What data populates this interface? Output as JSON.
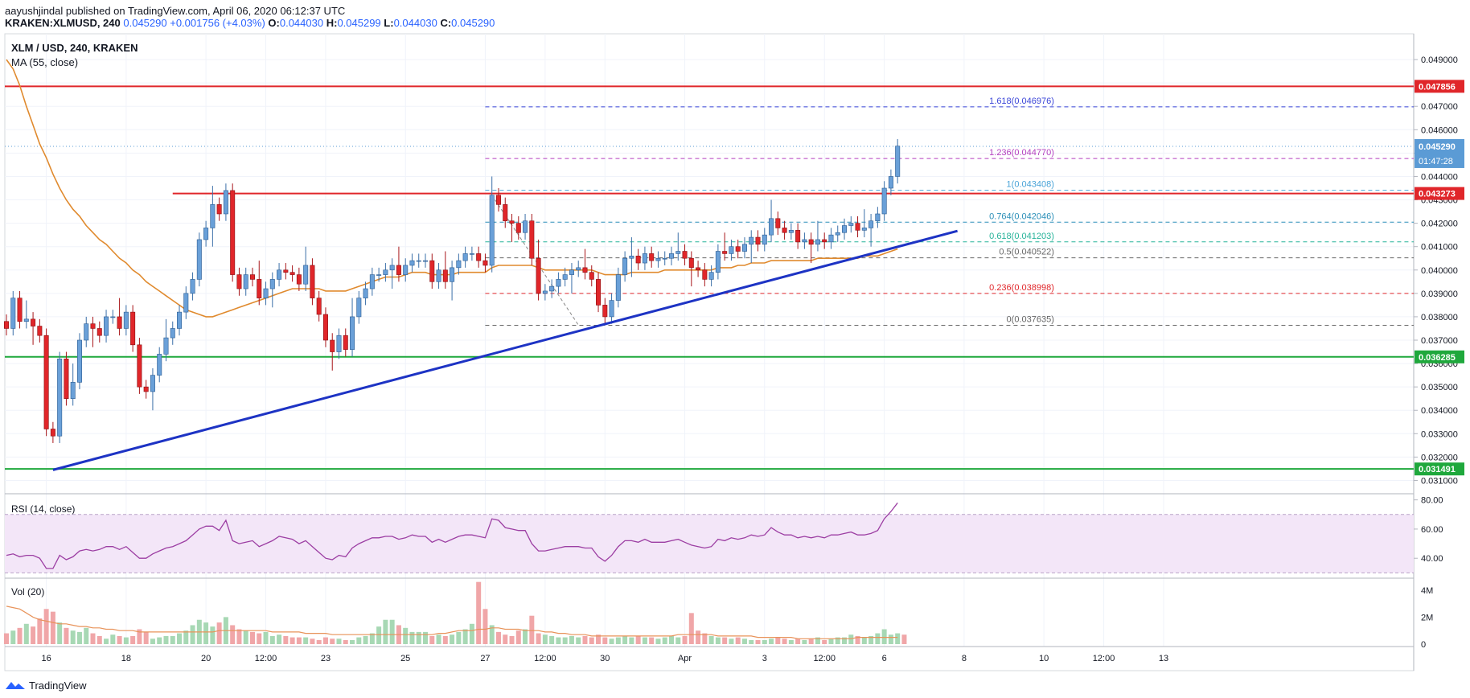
{
  "header": {
    "publisher": "aayushjindal",
    "published_text": "published on TradingView.com, April 06, 2020 06:12:37 UTC",
    "symbol_line": "KRAKEN:XLMUSD, 240",
    "last_price": "0.045290",
    "change": "+0.001756 (+4.03%)",
    "open_label": "O:",
    "open": "0.044030",
    "high_label": "H:",
    "high": "0.045299",
    "low_label": "L:",
    "low": "0.044030",
    "close_label": "C:",
    "close": "0.045290"
  },
  "footer": {
    "brand": "TradingView"
  },
  "colors": {
    "up": "#6aa0d8",
    "down": "#e0262a",
    "ma": "#e08a2e",
    "trend": "#1d33c4",
    "resistance": "#e0262a",
    "support": "#1fa83c",
    "rsi": "#9c3ea3",
    "volume_ma": "#e8935a"
  },
  "chart_data": [
    {
      "type": "candlestick",
      "title": "XLM / USD, 240, KRAKEN",
      "indicator_label": "MA (55, close)",
      "ylim": [
        0.0305,
        0.05
      ],
      "y_ticks": [
        "0.049000",
        "0.048000",
        "0.047000",
        "0.046000",
        "0.045000",
        "0.044000",
        "0.043000",
        "0.042000",
        "0.041000",
        "0.040000",
        "0.039000",
        "0.038000",
        "0.037000",
        "0.036000",
        "0.035000",
        "0.034000",
        "0.033000",
        "0.032000",
        "0.031000"
      ],
      "x_ticks": [
        {
          "label": "16",
          "i": 6
        },
        {
          "label": "18",
          "i": 18
        },
        {
          "label": "20",
          "i": 30
        },
        {
          "label": "12:00",
          "i": 39
        },
        {
          "label": "23",
          "i": 48
        },
        {
          "label": "25",
          "i": 60
        },
        {
          "label": "27",
          "i": 72
        },
        {
          "label": "12:00",
          "i": 81
        },
        {
          "label": "30",
          "i": 90
        },
        {
          "label": "Apr",
          "i": 102
        },
        {
          "label": "3",
          "i": 114
        },
        {
          "label": "12:00",
          "i": 123
        },
        {
          "label": "6",
          "i": 132
        },
        {
          "label": "8",
          "i": 144
        },
        {
          "label": "10",
          "i": 156
        },
        {
          "label": "12:00",
          "i": 165
        },
        {
          "label": "13",
          "i": 174
        }
      ],
      "candles_close": [
        0.0375,
        0.0388,
        0.0378,
        0.0379,
        0.0376,
        0.0372,
        0.0332,
        0.0329,
        0.0362,
        0.0345,
        0.0352,
        0.037,
        0.0377,
        0.0375,
        0.0372,
        0.038,
        0.038,
        0.0375,
        0.0382,
        0.0368,
        0.035,
        0.0348,
        0.0355,
        0.0364,
        0.0371,
        0.0375,
        0.0382,
        0.039,
        0.0396,
        0.0413,
        0.0418,
        0.0428,
        0.0424,
        0.0434,
        0.0398,
        0.0392,
        0.0398,
        0.0396,
        0.0388,
        0.0392,
        0.0396,
        0.04,
        0.0399,
        0.0398,
        0.0394,
        0.0402,
        0.0388,
        0.0381,
        0.037,
        0.0365,
        0.0372,
        0.0366,
        0.038,
        0.0388,
        0.0392,
        0.0398,
        0.0398,
        0.04,
        0.0402,
        0.0398,
        0.0402,
        0.0404,
        0.0404,
        0.0404,
        0.0395,
        0.04,
        0.0395,
        0.0401,
        0.0404,
        0.0407,
        0.0407,
        0.0404,
        0.0402,
        0.0432,
        0.0428,
        0.0421,
        0.042,
        0.0416,
        0.0421,
        0.0405,
        0.039,
        0.0391,
        0.0393,
        0.0396,
        0.0398,
        0.04,
        0.0401,
        0.0399,
        0.0396,
        0.0385,
        0.038,
        0.0387,
        0.0398,
        0.0405,
        0.0406,
        0.0403,
        0.0407,
        0.0404,
        0.0405,
        0.0405,
        0.0407,
        0.0408,
        0.0405,
        0.0401,
        0.04,
        0.0396,
        0.0399,
        0.0408,
        0.0407,
        0.041,
        0.0408,
        0.0411,
        0.0414,
        0.0411,
        0.0415,
        0.0422,
        0.0418,
        0.0416,
        0.0417,
        0.0412,
        0.0413,
        0.0411,
        0.0413,
        0.0412,
        0.0415,
        0.0416,
        0.0419,
        0.042,
        0.0417,
        0.0418,
        0.0421,
        0.0424,
        0.0435,
        0.044,
        0.0453
      ],
      "candles_start_open": 0.0378,
      "ma_55": [
        0.049,
        0.0486,
        0.0479,
        0.047,
        0.0462,
        0.0454,
        0.0448,
        0.0441,
        0.0435,
        0.043,
        0.0426,
        0.0423,
        0.0419,
        0.0416,
        0.0413,
        0.0411,
        0.0408,
        0.0405,
        0.0403,
        0.04,
        0.0398,
        0.0395,
        0.0393,
        0.0391,
        0.0389,
        0.0387,
        0.0385,
        0.0383,
        0.0382,
        0.0381,
        0.038,
        0.038,
        0.0381,
        0.0382,
        0.0383,
        0.0384,
        0.0385,
        0.0386,
        0.0387,
        0.0388,
        0.0389,
        0.039,
        0.0391,
        0.0392,
        0.0392,
        0.0392,
        0.0392,
        0.0392,
        0.0391,
        0.0391,
        0.0391,
        0.0391,
        0.0392,
        0.0393,
        0.0394,
        0.0395,
        0.0396,
        0.0397,
        0.0397,
        0.0397,
        0.0398,
        0.0399,
        0.0399,
        0.0399,
        0.0398,
        0.0398,
        0.0398,
        0.0398,
        0.0399,
        0.0399,
        0.0399,
        0.0399,
        0.0399,
        0.0401,
        0.0402,
        0.0402,
        0.0402,
        0.0402,
        0.0402,
        0.0402,
        0.0401,
        0.04,
        0.04,
        0.04,
        0.04,
        0.04,
        0.04,
        0.04,
        0.04,
        0.0399,
        0.0398,
        0.0398,
        0.0398,
        0.0398,
        0.0399,
        0.0399,
        0.0399,
        0.0399,
        0.0399,
        0.04,
        0.04,
        0.04,
        0.04,
        0.04,
        0.04,
        0.04,
        0.04,
        0.0401,
        0.0401,
        0.0401,
        0.0402,
        0.0402,
        0.0403,
        0.0403,
        0.0403,
        0.0404,
        0.0404,
        0.0404,
        0.0404,
        0.0404,
        0.0404,
        0.0404,
        0.0405,
        0.0405,
        0.0405,
        0.0405,
        0.0405,
        0.0405,
        0.0405,
        0.0406,
        0.0406,
        0.0406,
        0.0407,
        0.0408,
        0.0409
      ],
      "horizontal_levels": [
        {
          "value": 0.047856,
          "label": "0.047856",
          "color": "#e0262a"
        },
        {
          "value": 0.043273,
          "label": "0.043273",
          "color": "#e0262a"
        },
        {
          "value": 0.036285,
          "label": "0.036285",
          "color": "#1fa83c"
        },
        {
          "value": 0.031491,
          "label": "0.031491",
          "color": "#1fa83c"
        }
      ],
      "last_price_label": "0.045290",
      "countdown_label": "01:47:28",
      "fibonacci": {
        "from_i": 72,
        "to_i": 144,
        "levels": [
          {
            "text": "1.618(0.046976)",
            "value": 0.046976,
            "color": "#3b46d8"
          },
          {
            "text": "1.236(0.044770)",
            "value": 0.04477,
            "color": "#b33fbf"
          },
          {
            "text": "1(0.043408)",
            "value": 0.043408,
            "color": "#4aa4d8"
          },
          {
            "text": "0.764(0.042046)",
            "value": 0.042046,
            "color": "#2b8fb8"
          },
          {
            "text": "0.618(0.041203)",
            "value": 0.041203,
            "color": "#27b39a"
          },
          {
            "text": "0.5(0.040522)",
            "value": 0.040522,
            "color": "#666666"
          },
          {
            "text": "0.236(0.038998)",
            "value": 0.038998,
            "color": "#e0262a"
          },
          {
            "text": "0(0.037635)",
            "value": 0.037635,
            "color": "#666666"
          }
        ]
      },
      "trendline": {
        "i1": 7,
        "v1": 0.03145,
        "i2": 143,
        "v2": 0.04167
      }
    },
    {
      "type": "line",
      "title": "RSI (14, close)",
      "ylim": [
        28,
        82
      ],
      "y_ticks": [
        "80.00",
        "60.00",
        "40.00"
      ],
      "band": [
        30,
        70
      ],
      "values": [
        42,
        43,
        41,
        42,
        42,
        40,
        33,
        33,
        42,
        39,
        41,
        45,
        46,
        45,
        46,
        48,
        48,
        46,
        48,
        44,
        40,
        40,
        43,
        45,
        47,
        48,
        50,
        52,
        56,
        60,
        62,
        62,
        59,
        66,
        52,
        50,
        51,
        52,
        48,
        50,
        52,
        55,
        54,
        53,
        50,
        52,
        48,
        44,
        40,
        39,
        42,
        41,
        47,
        50,
        52,
        54,
        54,
        55,
        55,
        53,
        54,
        56,
        55,
        55,
        51,
        53,
        51,
        53,
        55,
        56,
        56,
        55,
        54,
        67,
        66,
        61,
        60,
        59,
        59,
        50,
        45,
        45,
        46,
        47,
        48,
        48,
        48,
        47,
        47,
        41,
        38,
        42,
        48,
        52,
        52,
        51,
        53,
        51,
        51,
        51,
        52,
        53,
        51,
        49,
        48,
        47,
        48,
        53,
        52,
        54,
        53,
        54,
        56,
        55,
        56,
        61,
        58,
        56,
        56,
        54,
        55,
        54,
        55,
        54,
        56,
        56,
        57,
        58,
        56,
        56,
        57,
        59,
        67,
        72,
        78
      ]
    },
    {
      "type": "bar",
      "title": "Vol (20)",
      "ylim": [
        0,
        4.7
      ],
      "y_ticks": [
        "4M",
        "2M",
        "0"
      ],
      "values": [
        0.8,
        1.0,
        1.2,
        1.5,
        1.3,
        1.9,
        2.6,
        2.4,
        1.6,
        1.2,
        1.0,
        0.9,
        1.2,
        0.8,
        0.6,
        0.4,
        0.7,
        0.6,
        0.5,
        0.6,
        1.1,
        0.9,
        0.4,
        0.5,
        0.6,
        0.6,
        0.8,
        1.0,
        1.4,
        1.8,
        1.6,
        1.3,
        1.6,
        2.0,
        1.4,
        1.1,
        1.0,
        0.9,
        0.8,
        0.9,
        0.6,
        0.7,
        0.6,
        0.5,
        0.5,
        0.5,
        0.4,
        0.3,
        0.5,
        0.4,
        0.4,
        0.3,
        0.3,
        0.5,
        0.6,
        0.8,
        1.3,
        1.8,
        1.8,
        1.4,
        1.2,
        0.9,
        0.9,
        0.9,
        0.6,
        0.7,
        0.6,
        0.7,
        0.9,
        1.1,
        1.5,
        4.6,
        2.6,
        1.4,
        0.9,
        0.7,
        0.6,
        1.0,
        1.1,
        2.1,
        0.8,
        0.7,
        0.6,
        0.5,
        0.5,
        0.6,
        0.5,
        0.6,
        0.5,
        0.7,
        0.5,
        0.4,
        0.5,
        0.6,
        0.5,
        0.6,
        0.5,
        0.5,
        0.4,
        0.5,
        0.6,
        0.5,
        0.6,
        2.3,
        1.0,
        0.8,
        0.6,
        0.5,
        0.5,
        0.4,
        0.5,
        0.4,
        0.3,
        0.3,
        0.3,
        0.4,
        0.5,
        0.4,
        0.3,
        0.4,
        0.3,
        0.4,
        0.5,
        0.3,
        0.4,
        0.5,
        0.5,
        0.7,
        0.6,
        0.5,
        0.6,
        0.8,
        1.1,
        0.7,
        0.8,
        0.7
      ],
      "ma_20": [
        2.8,
        2.7,
        2.6,
        2.3,
        2.0,
        1.8,
        1.7,
        1.6,
        1.5,
        1.5,
        1.4,
        1.3,
        1.3,
        1.2,
        1.2,
        1.1,
        1.1,
        1.0,
        1.0,
        1.0,
        0.9,
        0.9,
        0.9,
        0.9,
        0.9,
        0.9,
        0.9,
        0.9,
        0.9,
        0.9,
        0.9,
        0.9,
        1.0,
        1.0,
        1.0,
        1.0,
        1.0,
        1.0,
        1.0,
        1.0,
        0.9,
        0.9,
        0.9,
        0.9,
        0.9,
        0.8,
        0.8,
        0.8,
        0.8,
        0.7,
        0.7,
        0.7,
        0.7,
        0.7,
        0.7,
        0.7,
        0.7,
        0.7,
        0.7,
        0.7,
        0.7,
        0.7,
        0.7,
        0.7,
        0.7,
        0.8,
        0.8,
        0.9,
        1.0,
        1.0,
        1.0,
        1.1,
        1.1,
        1.2,
        1.2,
        1.1,
        1.1,
        1.1,
        1.0,
        1.0,
        1.0,
        0.9,
        0.9,
        0.8,
        0.8,
        0.7,
        0.7,
        0.7,
        0.6,
        0.6,
        0.6,
        0.6,
        0.6,
        0.6,
        0.6,
        0.6,
        0.6,
        0.6,
        0.6,
        0.6,
        0.6,
        0.7,
        0.7,
        0.7,
        0.7,
        0.7,
        0.7,
        0.6,
        0.6,
        0.6,
        0.6,
        0.6,
        0.6,
        0.5,
        0.5,
        0.5,
        0.5,
        0.5,
        0.5,
        0.4,
        0.4,
        0.4,
        0.4,
        0.4,
        0.4,
        0.4,
        0.4,
        0.4,
        0.5,
        0.5,
        0.5,
        0.5,
        0.5,
        0.5,
        0.5
      ]
    }
  ]
}
